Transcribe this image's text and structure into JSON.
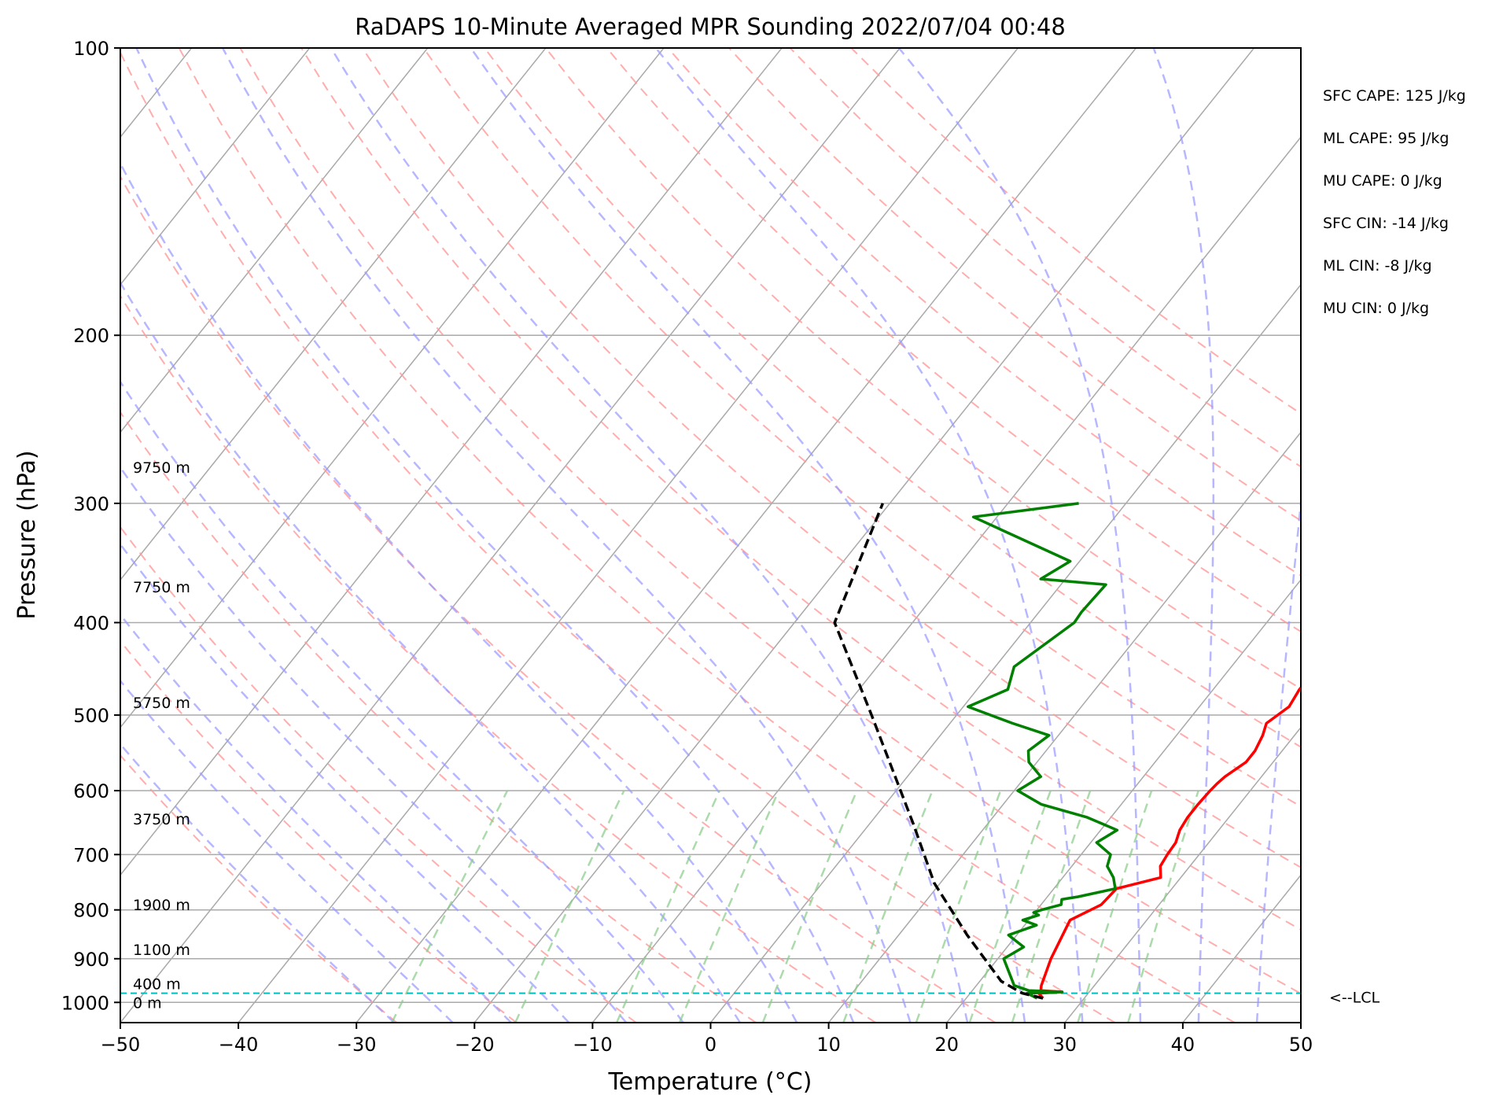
{
  "chart_data": {
    "type": "line",
    "title": "RaDAPS 10-Minute Averaged MPR Sounding 2022/07/04 00:48",
    "xlabel": "Temperature (°C)",
    "ylabel": "Pressure (hPa)",
    "xlim": [
      -50,
      50
    ],
    "ylim": [
      1050,
      100
    ],
    "y_scale": "log",
    "skew": "skew-T",
    "x_ticks": [
      -50,
      -40,
      -30,
      -20,
      -10,
      0,
      10,
      20,
      30,
      40,
      50
    ],
    "x_tick_labels": [
      "−50",
      "−40",
      "−30",
      "−20",
      "−10",
      "0",
      "10",
      "20",
      "30",
      "40",
      "50"
    ],
    "y_ticks": [
      100,
      200,
      300,
      400,
      500,
      600,
      700,
      800,
      900,
      1000
    ],
    "y_tick_labels": [
      "100",
      "200",
      "300",
      "400",
      "500",
      "600",
      "700",
      "800",
      "900",
      "1000"
    ],
    "grid": true,
    "colors": {
      "temperature": "#ff0000",
      "dewpoint": "#008000",
      "parcel": "#000000",
      "lcl": "#00bfbf",
      "dry_adiabats": "#ff9999",
      "moist_adiabats": "#9999ff",
      "mixing_ratio": "#88cc88",
      "isotherms": "#aaaaaa"
    },
    "series": [
      {
        "key": "temperature",
        "x": [
          26.5,
          25.8,
          27.7,
          25.8,
          25.5,
          24.5,
          23.5,
          25.1,
          25.2,
          25.3,
          28.3,
          27.5,
          27.3,
          27.2,
          26.7,
          26.5,
          26.5,
          26.6,
          26.7,
          26.9,
          27.7,
          27.7,
          27.3,
          26.8,
          27.6,
          27.3,
          27.3,
          28.3,
          27.3,
          27.2,
          27.4,
          27.7,
          30.8,
          30.5,
          29.3,
          29.1,
          30.2,
          30.9,
          33.7,
          34.0
        ],
        "y": [
          990,
          978,
          975,
          972,
          960,
          900,
          820,
          790,
          775,
          760,
          740,
          720,
          700,
          680,
          660,
          640,
          620,
          600,
          590,
          580,
          560,
          545,
          525,
          510,
          490,
          470,
          445,
          440,
          400,
          390,
          365,
          360,
          345,
          340,
          330,
          325,
          320,
          310,
          305,
          300
        ]
      },
      {
        "key": "dewpoint",
        "x": [
          26.0,
          24.8,
          27.7,
          24.8,
          23.2,
          20.5,
          21.4,
          19.3,
          21.0,
          19.5,
          20.5,
          19.9,
          20.4,
          21.7,
          21.4,
          22.6,
          25.2,
          24.3,
          23.0,
          22.5,
          20.5,
          21.4,
          18.0,
          13.2,
          10.3,
          11.3,
          9.3,
          8.5,
          9.2,
          5.3,
          0.4,
          2.6,
          1.6,
          3.7,
          3.6,
          3.8,
          -2.1,
          -0.8,
          -12.0,
          -4.0
        ],
        "y": [
          990,
          978,
          975,
          972,
          960,
          900,
          875,
          850,
          830,
          820,
          810,
          805,
          800,
          790,
          780,
          775,
          760,
          740,
          720,
          700,
          680,
          660,
          640,
          620,
          600,
          580,
          560,
          545,
          525,
          510,
          490,
          470,
          445,
          400,
          390,
          365,
          360,
          345,
          310,
          300
        ]
      },
      {
        "key": "parcel",
        "x": [
          26.5,
          24.4,
          21.8,
          15.8,
          9.5,
          3.7,
          -7.2,
          -16.6,
          -20.6
        ],
        "y": [
          990,
          978,
          950,
          850,
          750,
          650,
          500,
          400,
          300
        ]
      }
    ],
    "lcl_pressure": 978,
    "lcl_label": "<--LCL",
    "height_labels": [
      {
        "text": "9750 m",
        "p": 275
      },
      {
        "text": "7750 m",
        "p": 367
      },
      {
        "text": "5750 m",
        "p": 485
      },
      {
        "text": "3750 m",
        "p": 642
      },
      {
        "text": "1900 m",
        "p": 790
      },
      {
        "text": "1100 m",
        "p": 880
      },
      {
        "text": "400 m",
        "p": 956
      },
      {
        "text": "0 m",
        "p": 1000
      }
    ],
    "indices": [
      "SFC CAPE: 125 J/kg",
      "ML CAPE: 95 J/kg",
      "MU CAPE: 0 J/kg",
      "SFC CIN: -14 J/kg",
      "ML CIN: -8 J/kg",
      "MU CIN: 0 J/kg"
    ]
  }
}
